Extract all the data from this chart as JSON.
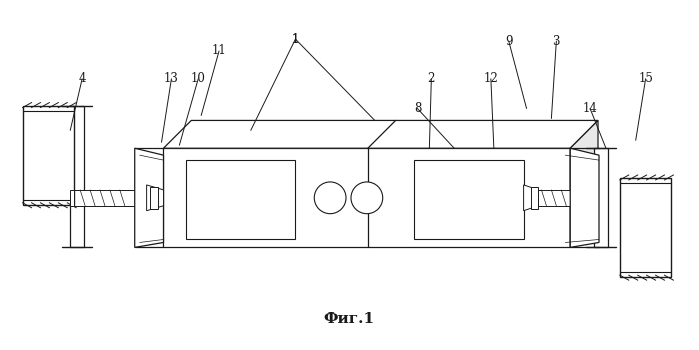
{
  "bg_color": "#ffffff",
  "line_color": "#1a1a1a",
  "fig_width": 6.99,
  "fig_height": 3.5,
  "dpi": 100,
  "caption": "Фиг.1"
}
